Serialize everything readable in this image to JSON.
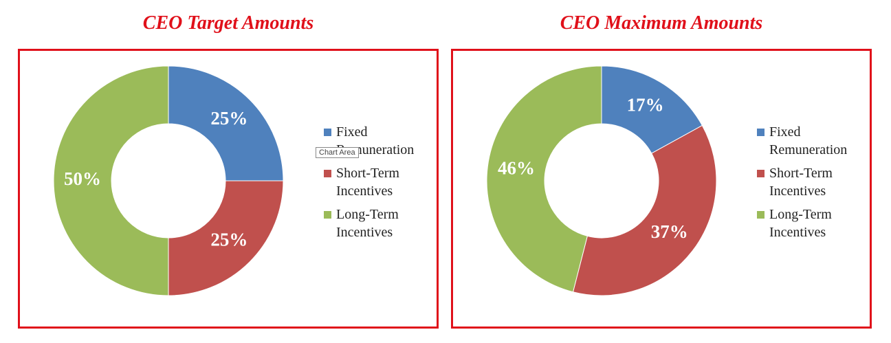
{
  "chart_data": [
    {
      "type": "doughnut",
      "title": "CEO Target Amounts",
      "categories": [
        "Fixed Remuneration",
        "Short-Term Incentives",
        "Long-Term Incentives"
      ],
      "values": [
        25,
        25,
        50
      ],
      "value_labels": [
        "25%",
        "25%",
        "50%"
      ],
      "colors": [
        "#4f81bd",
        "#c0504d",
        "#9bbb59"
      ],
      "tooltip": "Chart Area"
    },
    {
      "type": "doughnut",
      "title": "CEO Maximum Amounts",
      "categories": [
        "Fixed Remuneration",
        "Short-Term Incentives",
        "Long-Term Incentives"
      ],
      "values": [
        17,
        37,
        46
      ],
      "value_labels": [
        "17%",
        "37%",
        "46%"
      ],
      "colors": [
        "#4f81bd",
        "#c0504d",
        "#9bbb59"
      ]
    }
  ]
}
